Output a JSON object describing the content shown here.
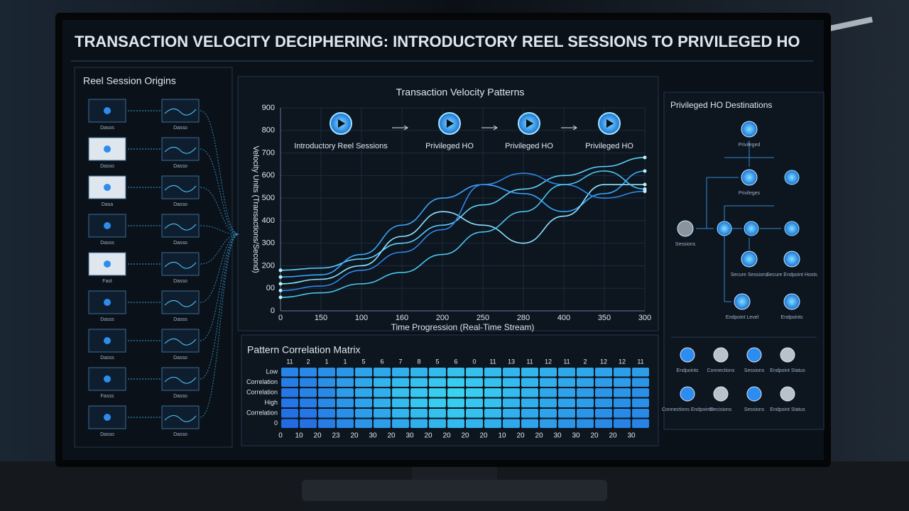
{
  "header": {
    "title": "TRANSACTION VELOCITY DECIPHERING: INTRODUCTORY REEL SESSIONS TO PRIVILEGED HO"
  },
  "origins": {
    "title": "Reel Session Origins",
    "left_labels": [
      "Dasos",
      "Dasso",
      "Dasa",
      "Dasss",
      "Fast",
      "Dasss",
      "Dasss",
      "Fasss",
      "Dasso"
    ],
    "right_labels": [
      "Dasso",
      "Dasso",
      "Dasso",
      "Dasso",
      "Dasso",
      "Dasss",
      "Dasso",
      "Dasso",
      "Dasso"
    ]
  },
  "chart_data": {
    "type": "line",
    "title": "Transaction Velocity Patterns",
    "x_label": "Time Progression (Real-Time Stream)",
    "y_label": "Velocity Units (Transactions/Second)",
    "stage_labels": [
      "Introductory Reel Sessions",
      "Privileged HO",
      "Privileged HO",
      "Privileged HO"
    ],
    "categories": [
      "0",
      "150",
      "100",
      "160",
      "200",
      "250",
      "280",
      "400",
      "350",
      "300"
    ],
    "ylim": [
      0,
      900
    ],
    "yticks": [
      0,
      {
        "value": 100,
        "label": "00"
      },
      200,
      300,
      400,
      500,
      600,
      700,
      800,
      900
    ],
    "grid": true,
    "series": [
      {
        "color": "#5fd0ff",
        "values": [
          180,
          190,
          230,
          300,
          380,
          470,
          540,
          600,
          640,
          680
        ]
      },
      {
        "color": "#3aa8ff",
        "values": [
          150,
          160,
          250,
          380,
          500,
          560,
          520,
          440,
          520,
          620
        ]
      },
      {
        "color": "#8fe4ff",
        "values": [
          120,
          140,
          200,
          330,
          440,
          380,
          300,
          420,
          560,
          560
        ]
      },
      {
        "color": "#2f86e8",
        "values": [
          90,
          110,
          180,
          260,
          360,
          560,
          610,
          560,
          500,
          530
        ]
      },
      {
        "color": "#49c6f0",
        "values": [
          60,
          80,
          120,
          170,
          250,
          350,
          440,
          560,
          620,
          540
        ]
      }
    ]
  },
  "matrix": {
    "title": "Pattern Correlation Matrix",
    "row_labels": [
      "Low",
      "Correlation",
      "Correlation",
      "High",
      "Correlation",
      "0"
    ],
    "top_labels": [
      "11",
      "2",
      "1",
      "1",
      "5",
      "6",
      "7",
      "8",
      "5",
      "6",
      "0",
      "11",
      "13",
      "11",
      "12",
      "11",
      "2",
      "12",
      "12",
      "11"
    ],
    "bottom_labels": [
      "0",
      "10",
      "20",
      "23",
      "20",
      "30",
      "20",
      "30",
      "20",
      "20",
      "20",
      "20",
      "10",
      "20",
      "20",
      "30",
      "30",
      "20",
      "20",
      "30"
    ],
    "cells": [
      [
        0.3,
        0.35,
        0.4,
        0.45,
        0.55,
        0.6,
        0.65,
        0.7,
        0.75,
        0.8,
        0.8,
        0.75,
        0.7,
        0.7,
        0.65,
        0.6,
        0.6,
        0.55,
        0.5,
        0.5
      ],
      [
        0.25,
        0.3,
        0.4,
        0.5,
        0.6,
        0.7,
        0.75,
        0.8,
        0.85,
        0.9,
        0.85,
        0.8,
        0.75,
        0.7,
        0.65,
        0.6,
        0.55,
        0.5,
        0.5,
        0.45
      ],
      [
        0.2,
        0.3,
        0.35,
        0.5,
        0.6,
        0.65,
        0.8,
        0.85,
        0.9,
        0.95,
        0.9,
        0.85,
        0.75,
        0.7,
        0.6,
        0.55,
        0.5,
        0.45,
        0.45,
        0.4
      ],
      [
        0.2,
        0.25,
        0.35,
        0.45,
        0.55,
        0.65,
        0.75,
        0.85,
        0.9,
        0.9,
        0.85,
        0.8,
        0.7,
        0.65,
        0.6,
        0.55,
        0.5,
        0.45,
        0.4,
        0.4
      ],
      [
        0.15,
        0.2,
        0.3,
        0.4,
        0.5,
        0.6,
        0.7,
        0.75,
        0.8,
        0.85,
        0.8,
        0.75,
        0.65,
        0.6,
        0.55,
        0.5,
        0.45,
        0.4,
        0.35,
        0.35
      ],
      [
        0.1,
        0.15,
        0.25,
        0.35,
        0.45,
        0.5,
        0.6,
        0.65,
        0.7,
        0.75,
        0.7,
        0.65,
        0.6,
        0.55,
        0.5,
        0.45,
        0.4,
        0.35,
        0.3,
        0.3
      ]
    ]
  },
  "destinations": {
    "title": "Privileged HO Destinations",
    "nodes": [
      "Privileged",
      "Privileges",
      "Sessions",
      "Secure Sessions",
      "Secure Endpoint Hosts",
      "Endpoint Level",
      "Endpoints"
    ],
    "status": [
      "Endpoints",
      "Connections",
      "Sessions",
      "Endpoint Status",
      "Connections Endpoints",
      "Decisions",
      "Sessions",
      "Endpoint Status"
    ]
  }
}
